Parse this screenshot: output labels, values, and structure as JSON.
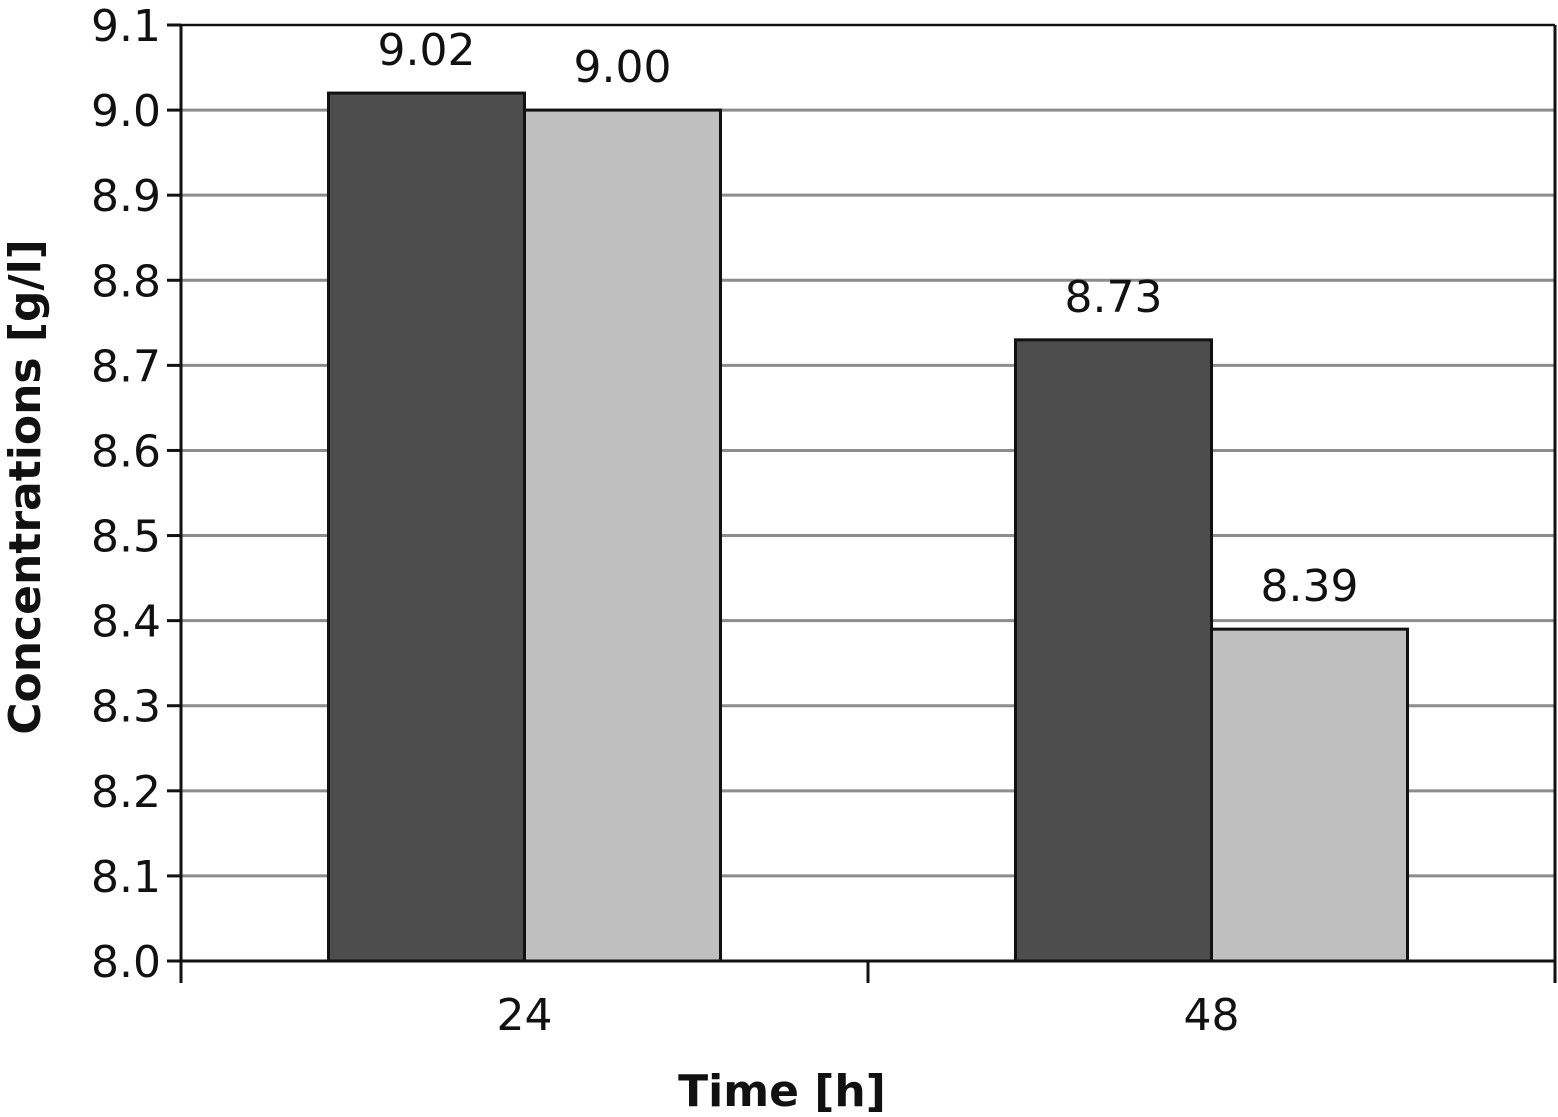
{
  "chart_data": {
    "type": "bar",
    "title": "",
    "xlabel": "Time [h]",
    "ylabel": "Concentrations [g/l]",
    "categories": [
      "24",
      "48"
    ],
    "series": [
      {
        "values": [
          9.02,
          8.73
        ],
        "data_labels": [
          "9.02",
          "8.73"
        ],
        "color": "#4d4d4d"
      },
      {
        "values": [
          9.0,
          8.39
        ],
        "data_labels": [
          "9.00",
          "8.39"
        ],
        "color": "#bfbfbf"
      }
    ],
    "ylim": [
      8.0,
      9.1
    ],
    "yticks": [
      8.0,
      8.1,
      8.2,
      8.3,
      8.4,
      8.5,
      8.6,
      8.7,
      8.8,
      8.9,
      9.0,
      9.1
    ],
    "ytick_labels": [
      "8.0",
      "8.1",
      "8.2",
      "8.3",
      "8.4",
      "8.5",
      "8.6",
      "8.7",
      "8.8",
      "8.9",
      "9.0",
      "9.1"
    ],
    "grid": "horizontal",
    "legend": "none"
  }
}
